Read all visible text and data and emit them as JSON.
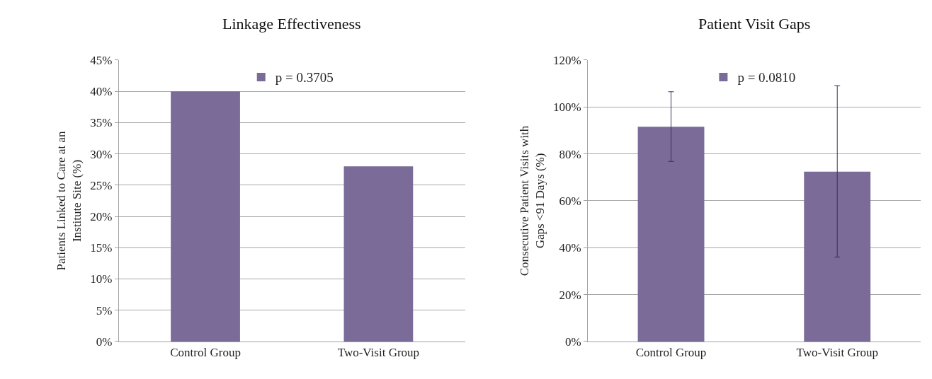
{
  "chart_data": [
    {
      "type": "bar",
      "title": "Linkage Effectiveness",
      "ylabel": "Patients Linked to Care at an Institute Site (%)",
      "categories": [
        "Control Group",
        "Two-Visit Group"
      ],
      "series": [
        {
          "name": "p = 0.3705",
          "color": "#7b6b98",
          "values": [
            40,
            28
          ]
        }
      ],
      "ylim": [
        0,
        45
      ],
      "yticks": [
        {
          "value": 0,
          "label": "0%"
        },
        {
          "value": 5,
          "label": "5%"
        },
        {
          "value": 10,
          "label": "10%"
        },
        {
          "value": 15,
          "label": "15%"
        },
        {
          "value": 20,
          "label": "20%"
        },
        {
          "value": 25,
          "label": "25%"
        },
        {
          "value": 30,
          "label": "30%"
        },
        {
          "value": 35,
          "label": "35%"
        },
        {
          "value": 40,
          "label": "40%"
        },
        {
          "value": 45,
          "label": "45%"
        }
      ],
      "grid": "y",
      "legend": "top"
    },
    {
      "type": "bar",
      "title": "Patient Visit Gaps",
      "ylabel": "Consecutive Patient Visits with Gaps <91 Days (%)",
      "categories": [
        "Control Group",
        "Two-Visit Group"
      ],
      "series": [
        {
          "name": "p = 0.0810",
          "color": "#7b6b98",
          "values": [
            91.6,
            72.4
          ],
          "errors": [
            [
              76.8,
              106.5
            ],
            [
              36.0,
              109.1
            ]
          ]
        }
      ],
      "ylim": [
        0,
        120
      ],
      "yticks": [
        {
          "value": 0,
          "label": "0%"
        },
        {
          "value": 20,
          "label": "20%"
        },
        {
          "value": 40,
          "label": "40%"
        },
        {
          "value": 60,
          "label": "60%"
        },
        {
          "value": 80,
          "label": "80%"
        },
        {
          "value": 100,
          "label": "100%"
        },
        {
          "value": 120,
          "label": "120%"
        }
      ],
      "grid": "y",
      "legend": "top"
    }
  ]
}
